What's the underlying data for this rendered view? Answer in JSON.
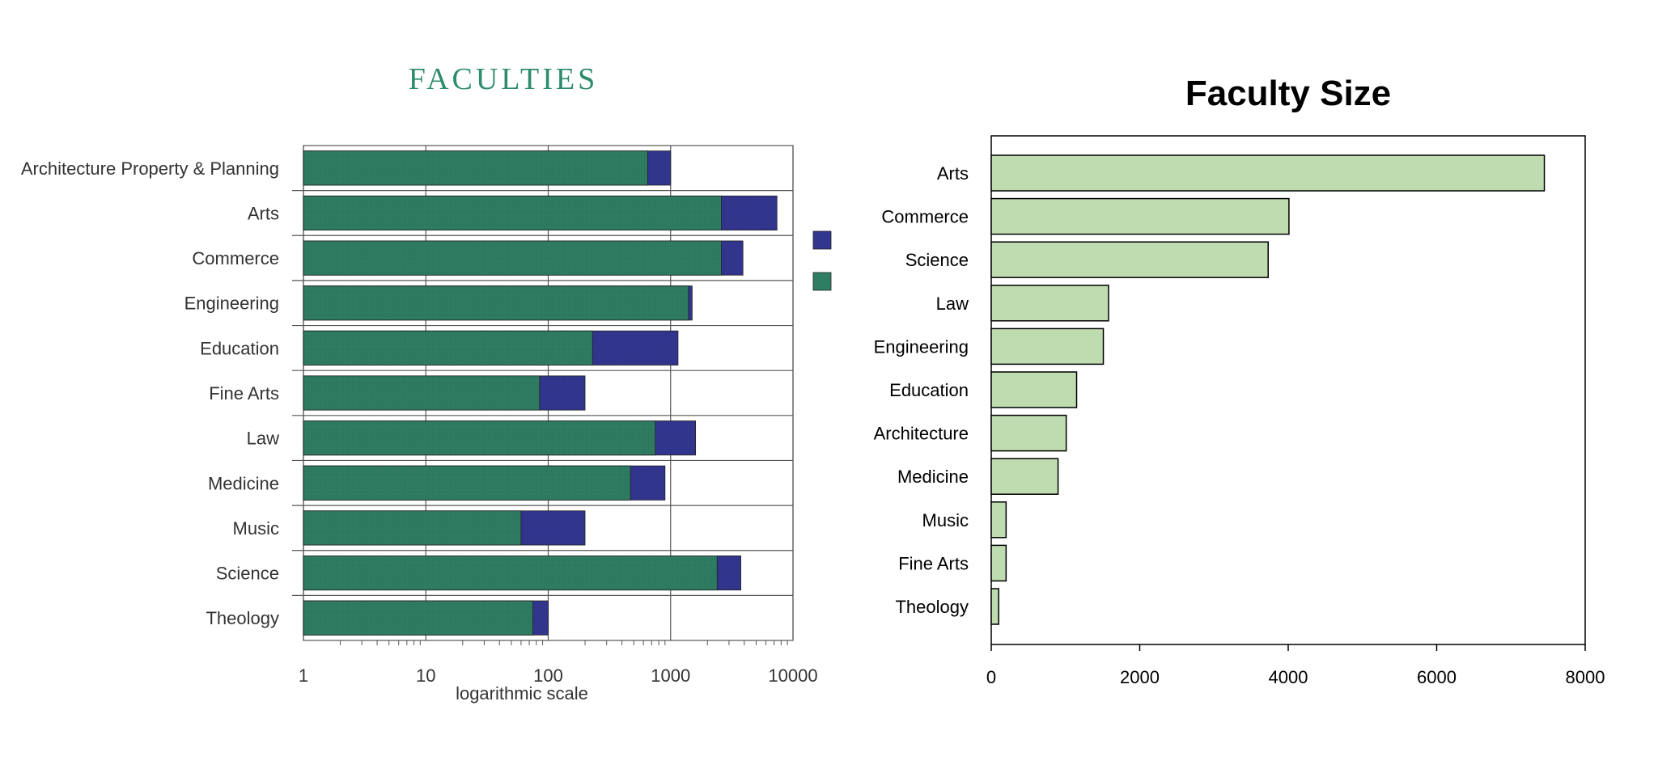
{
  "chart_data": [
    {
      "type": "bar",
      "orientation": "horizontal",
      "stacked": true,
      "title": "FACULTIES",
      "xlabel": "logarithmic scale",
      "ylabel": "",
      "xscale": "log",
      "xlim": [
        1,
        10000
      ],
      "xticks": [
        "1",
        "10",
        "100",
        "1000",
        "10000"
      ],
      "grid": true,
      "legend_position": "right",
      "colors": {
        "green": "#2f7d62",
        "blue": "#33368f"
      },
      "categories": [
        "Architecture Property & Planning",
        "Arts",
        "Commerce",
        "Engineering",
        "Education",
        "Fine Arts",
        "Law",
        "Medicine",
        "Music",
        "Science",
        "Theology"
      ],
      "series": [
        {
          "values": [
            650,
            2600,
            2600,
            1400,
            230,
            85,
            750,
            470,
            60,
            2400,
            75
          ]
        },
        {
          "values": [
            1000,
            7400,
            3900,
            1500,
            1150,
            200,
            1600,
            900,
            200,
            3750,
            100
          ]
        }
      ]
    },
    {
      "type": "bar",
      "orientation": "horizontal",
      "title": "Faculty Size",
      "xlabel": "",
      "ylabel": "",
      "xlim": [
        0,
        8000
      ],
      "xticks": [
        "0",
        "2000",
        "4000",
        "6000",
        "8000"
      ],
      "grid": false,
      "colors": {
        "fill": "#bfdcb0",
        "stroke": "#000000"
      },
      "categories": [
        "Arts",
        "Commerce",
        "Science",
        "Law",
        "Engineering",
        "Education",
        "Architecture",
        "Medicine",
        "Music",
        "Fine Arts",
        "Theology"
      ],
      "values": [
        7450,
        4010,
        3730,
        1580,
        1510,
        1150,
        1010,
        900,
        200,
        200,
        100
      ]
    }
  ]
}
